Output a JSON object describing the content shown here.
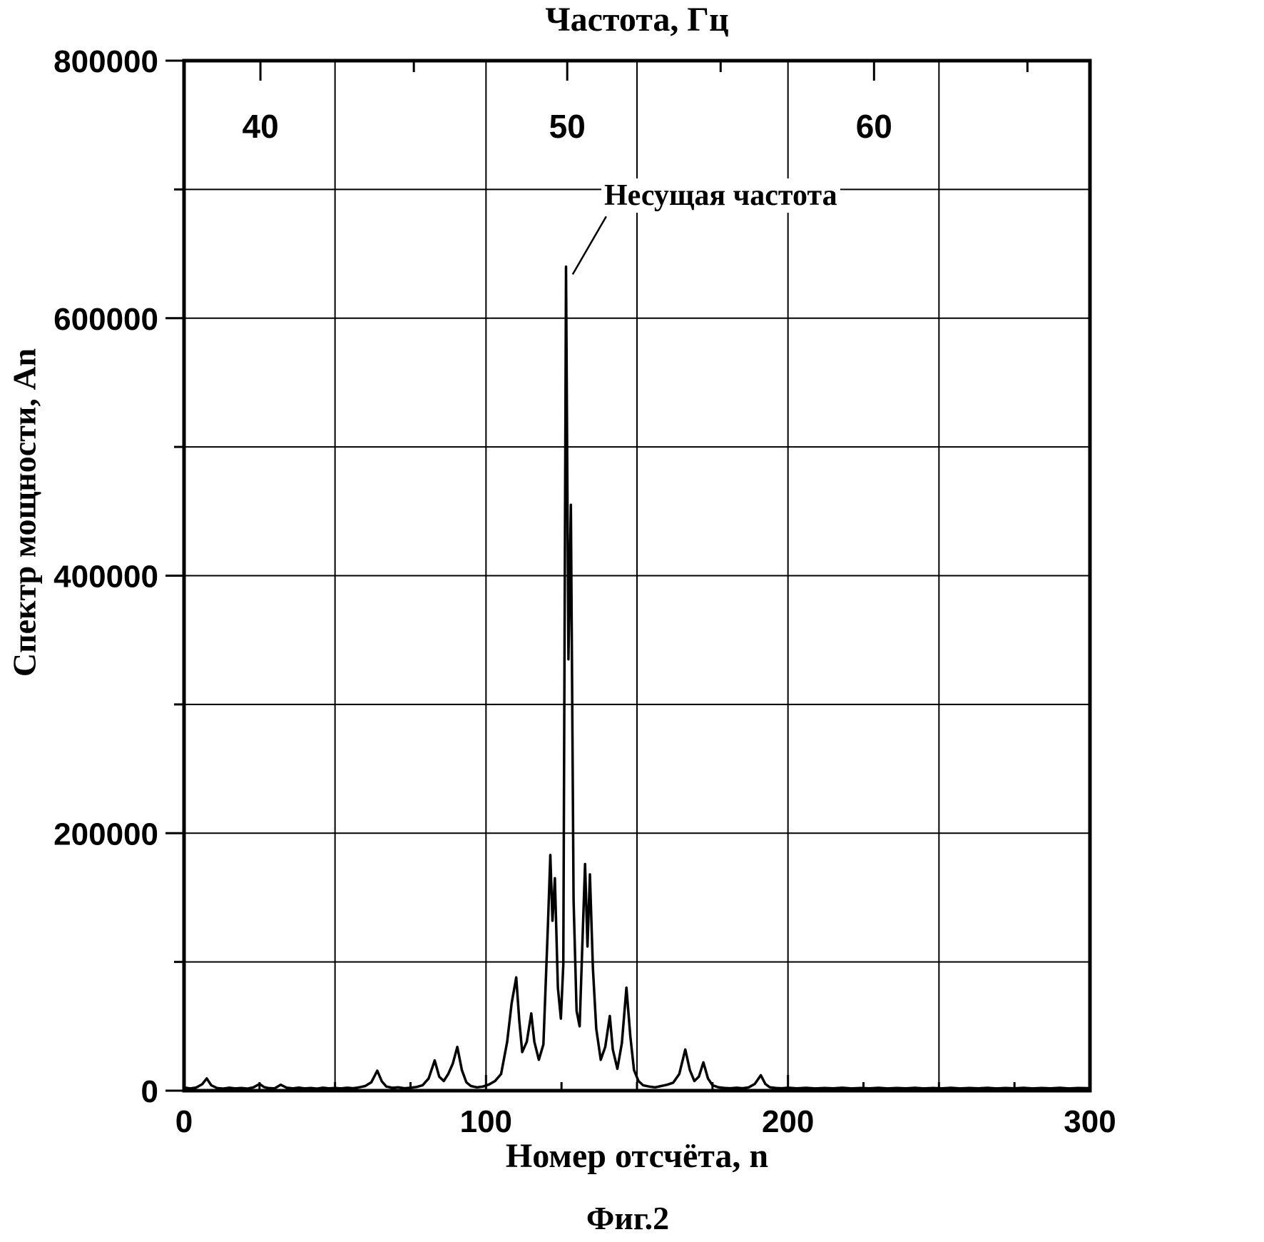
{
  "figure": {
    "caption": "Фиг.2"
  },
  "chart_data": {
    "type": "line",
    "title": "Частота, Гц",
    "xlabel": "Номер отсчёта, n",
    "ylabel": "Спектр мощности, An",
    "xlim": [
      0,
      300
    ],
    "ylim": [
      0,
      800000
    ],
    "grid": true,
    "line_color": "#000000",
    "background_color": "#ffffff",
    "x_axis": {
      "tick_values": [
        0,
        100,
        200,
        300
      ],
      "tick_labels": [
        "0",
        "100",
        "200",
        "300"
      ],
      "minor_tick_values": [
        25,
        50,
        75,
        125,
        150,
        175,
        225,
        250,
        275
      ],
      "gridline_values": [
        50,
        100,
        150,
        200,
        250
      ]
    },
    "y_axis": {
      "tick_values": [
        0,
        200000,
        400000,
        600000,
        800000
      ],
      "tick_labels": [
        "0",
        "200000",
        "400000",
        "600000",
        "800000"
      ],
      "minor_tick_values": [
        100000,
        300000,
        500000,
        700000
      ],
      "gridline_values": [
        100000,
        200000,
        300000,
        400000,
        500000,
        600000,
        700000
      ]
    },
    "top_axis": {
      "unit": "Гц",
      "tick_values_hz": [
        40,
        50,
        60
      ],
      "tick_labels": [
        "40",
        "50",
        "60"
      ],
      "minor_tick_values_hz": [
        45,
        55,
        65
      ],
      "hz_to_n": {
        "n_at_40hz": 25.3,
        "n_per_hz": 10.16
      }
    },
    "annotation": {
      "text": "Несущая частота",
      "points_to_peak": {
        "n": 126.5,
        "value": 640000
      },
      "leader_from": {
        "n": 139.8,
        "value": 679000
      },
      "leader_to": {
        "n": 128.7,
        "value": 634000
      }
    },
    "series": [
      {
        "name": "power-spectrum",
        "points": [
          [
            0,
            2500
          ],
          [
            2,
            1800
          ],
          [
            4,
            2400
          ],
          [
            6,
            5000
          ],
          [
            7.5,
            9500
          ],
          [
            9,
            4200
          ],
          [
            11,
            2000
          ],
          [
            13,
            1600
          ],
          [
            15,
            2300
          ],
          [
            17,
            1700
          ],
          [
            19,
            2100
          ],
          [
            21,
            1600
          ],
          [
            23,
            2600
          ],
          [
            25,
            5200
          ],
          [
            26.5,
            2800
          ],
          [
            28,
            2000
          ],
          [
            30,
            1800
          ],
          [
            32,
            4600
          ],
          [
            34,
            2300
          ],
          [
            36,
            1800
          ],
          [
            38,
            2400
          ],
          [
            40,
            1700
          ],
          [
            42,
            2100
          ],
          [
            44,
            1600
          ],
          [
            46,
            2300
          ],
          [
            48,
            1800
          ],
          [
            50,
            2100
          ],
          [
            52,
            1700
          ],
          [
            54,
            2300
          ],
          [
            56,
            1900
          ],
          [
            58,
            2600
          ],
          [
            60,
            3600
          ],
          [
            62,
            6500
          ],
          [
            64,
            15500
          ],
          [
            65.5,
            7200
          ],
          [
            67,
            3200
          ],
          [
            69,
            2200
          ],
          [
            71,
            2600
          ],
          [
            73,
            1900
          ],
          [
            75,
            2300
          ],
          [
            77,
            2900
          ],
          [
            79,
            4200
          ],
          [
            81,
            9500
          ],
          [
            83,
            23500
          ],
          [
            84.5,
            11000
          ],
          [
            86,
            7500
          ],
          [
            87.5,
            13000
          ],
          [
            89,
            21000
          ],
          [
            90.5,
            34000
          ],
          [
            92,
            16000
          ],
          [
            93.5,
            6500
          ],
          [
            95,
            3600
          ],
          [
            97,
            2600
          ],
          [
            99,
            3200
          ],
          [
            101,
            4800
          ],
          [
            103,
            7500
          ],
          [
            105,
            13000
          ],
          [
            107,
            38000
          ],
          [
            108.5,
            68000
          ],
          [
            110,
            88000
          ],
          [
            111,
            55000
          ],
          [
            112,
            30000
          ],
          [
            113.5,
            38000
          ],
          [
            115,
            60000
          ],
          [
            116,
            38000
          ],
          [
            117.5,
            24000
          ],
          [
            119,
            36000
          ],
          [
            120.5,
            128000
          ],
          [
            121.3,
            183000
          ],
          [
            122,
            132000
          ],
          [
            122.8,
            165000
          ],
          [
            123.8,
            80000
          ],
          [
            124.8,
            56000
          ],
          [
            125.6,
            98000
          ],
          [
            126.5,
            640000
          ],
          [
            127.3,
            335000
          ],
          [
            128.1,
            455000
          ],
          [
            129,
            148000
          ],
          [
            130,
            62000
          ],
          [
            131,
            50000
          ],
          [
            132,
            120000
          ],
          [
            132.8,
            176000
          ],
          [
            133.6,
            112000
          ],
          [
            134.4,
            168000
          ],
          [
            135.4,
            95000
          ],
          [
            136.5,
            48000
          ],
          [
            138,
            24000
          ],
          [
            139.5,
            34000
          ],
          [
            141,
            58000
          ],
          [
            142,
            32000
          ],
          [
            143.5,
            17000
          ],
          [
            145,
            37000
          ],
          [
            146.5,
            80000
          ],
          [
            147.8,
            42000
          ],
          [
            149,
            16000
          ],
          [
            150.5,
            7500
          ],
          [
            152,
            4200
          ],
          [
            154,
            3200
          ],
          [
            156,
            2600
          ],
          [
            158,
            3600
          ],
          [
            160,
            4600
          ],
          [
            162,
            6200
          ],
          [
            164,
            13000
          ],
          [
            166,
            32000
          ],
          [
            167.5,
            16000
          ],
          [
            169,
            7500
          ],
          [
            170.5,
            11000
          ],
          [
            172,
            22000
          ],
          [
            173.5,
            9500
          ],
          [
            175,
            4200
          ],
          [
            177,
            2600
          ],
          [
            179,
            2100
          ],
          [
            181,
            1900
          ],
          [
            183,
            2300
          ],
          [
            185,
            1900
          ],
          [
            187,
            2600
          ],
          [
            189,
            5200
          ],
          [
            191,
            12000
          ],
          [
            192.5,
            5200
          ],
          [
            194,
            2600
          ],
          [
            196,
            2100
          ],
          [
            198,
            1900
          ],
          [
            200,
            2300
          ],
          [
            203,
            1800
          ],
          [
            206,
            2200
          ],
          [
            209,
            1700
          ],
          [
            212,
            2100
          ],
          [
            215,
            1800
          ],
          [
            218,
            2300
          ],
          [
            221,
            1700
          ],
          [
            224,
            2100
          ],
          [
            227,
            1800
          ],
          [
            230,
            2200
          ],
          [
            233,
            1700
          ],
          [
            236,
            2100
          ],
          [
            239,
            1800
          ],
          [
            242,
            2200
          ],
          [
            245,
            1700
          ],
          [
            248,
            2100
          ],
          [
            251,
            1800
          ],
          [
            254,
            2200
          ],
          [
            257,
            1700
          ],
          [
            260,
            2100
          ],
          [
            263,
            1800
          ],
          [
            266,
            2200
          ],
          [
            269,
            1700
          ],
          [
            272,
            2100
          ],
          [
            275,
            1800
          ],
          [
            278,
            2200
          ],
          [
            281,
            1700
          ],
          [
            284,
            2100
          ],
          [
            287,
            1800
          ],
          [
            290,
            2200
          ],
          [
            293,
            1700
          ],
          [
            296,
            2100
          ],
          [
            300,
            1900
          ]
        ]
      }
    ]
  }
}
